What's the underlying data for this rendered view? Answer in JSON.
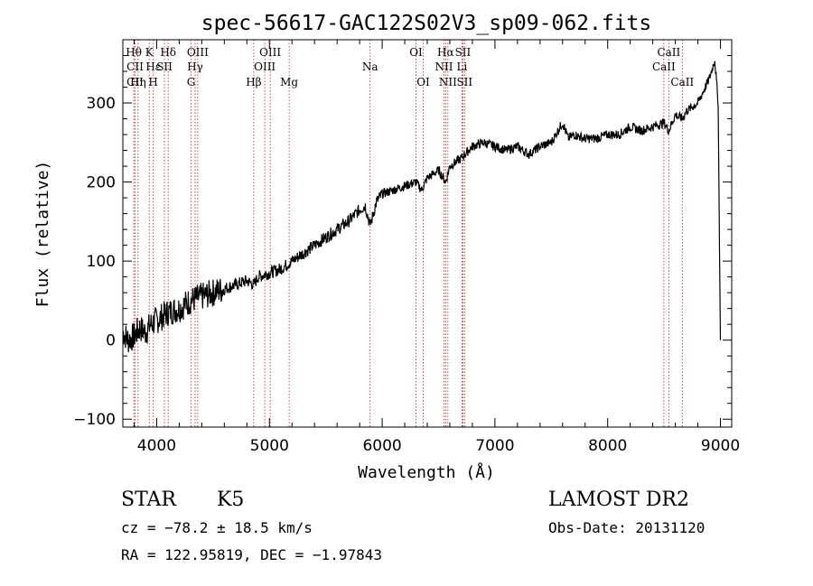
{
  "chart_data": {
    "type": "line",
    "title": "spec-56617-GAC122S02V3_sp09-062.fits",
    "xlabel": "Wavelength (Å)",
    "ylabel": "Flux (relative)",
    "xlim": [
      3700,
      9100
    ],
    "ylim": [
      -110,
      380
    ],
    "xticks": [
      4000,
      5000,
      6000,
      7000,
      8000,
      9000
    ],
    "yticks": [
      -100,
      0,
      100,
      200,
      300
    ],
    "xtick_labels": [
      "4000",
      "5000",
      "6000",
      "7000",
      "8000",
      "9000"
    ],
    "ytick_labels": [
      "−100",
      "0",
      "100",
      "200",
      "300"
    ],
    "grid": false,
    "series": [
      {
        "x": [
          3700,
          3750,
          3800,
          3850,
          3900,
          3950,
          4000,
          4050,
          4100,
          4200,
          4300,
          4400,
          4500,
          4600,
          4700,
          4800,
          4861,
          4900,
          5000,
          5100,
          5200,
          5300,
          5400,
          5500,
          5600,
          5700,
          5800,
          5850,
          5893,
          5950,
          6000,
          6100,
          6200,
          6300,
          6350,
          6400,
          6500,
          6563,
          6600,
          6700,
          6800,
          6900,
          7000,
          7100,
          7200,
          7300,
          7400,
          7500,
          7600,
          7650,
          7700,
          7800,
          7900,
          8000,
          8100,
          8200,
          8300,
          8400,
          8500,
          8542,
          8600,
          8662,
          8700,
          8800,
          8900,
          8950,
          8980,
          9000
        ],
        "y": [
          10,
          0,
          5,
          15,
          10,
          20,
          25,
          30,
          35,
          40,
          50,
          55,
          60,
          65,
          70,
          75,
          70,
          80,
          85,
          90,
          100,
          110,
          120,
          130,
          140,
          150,
          165,
          170,
          145,
          175,
          185,
          190,
          195,
          200,
          190,
          205,
          215,
          200,
          220,
          230,
          245,
          250,
          245,
          240,
          245,
          235,
          245,
          250,
          275,
          255,
          260,
          255,
          255,
          260,
          260,
          270,
          265,
          270,
          275,
          265,
          285,
          280,
          290,
          300,
          330,
          355,
          300,
          0
        ]
      }
    ],
    "line_marks": [
      {
        "label": "Hθ",
        "x": 3797,
        "row": 1
      },
      {
        "label": "CII",
        "x": 3808,
        "row": 2
      },
      {
        "label": "CII",
        "x": 3808,
        "row": 3
      },
      {
        "label": "K",
        "x": 3934,
        "row": 1
      },
      {
        "label": "Hε",
        "x": 3970,
        "row": 2
      },
      {
        "label": "Hη",
        "x": 3835,
        "row": 3
      },
      {
        "label": "SII",
        "x": 4069,
        "row": 2
      },
      {
        "label": "H",
        "x": 3969,
        "row": 3
      },
      {
        "label": "Hδ",
        "x": 4102,
        "row": 1
      },
      {
        "label": "OIII",
        "x": 4364,
        "row": 1
      },
      {
        "label": "Hγ",
        "x": 4341,
        "row": 2
      },
      {
        "label": "G",
        "x": 4305,
        "row": 3
      },
      {
        "label": "Hβ",
        "x": 4861,
        "row": 3
      },
      {
        "label": "OIII",
        "x": 5007,
        "row": 1
      },
      {
        "label": "OIII",
        "x": 4959,
        "row": 2
      },
      {
        "label": "Mg",
        "x": 5175,
        "row": 3
      },
      {
        "label": "Na",
        "x": 5893,
        "row": 2
      },
      {
        "label": "OI",
        "x": 6300,
        "row": 1
      },
      {
        "label": "OI",
        "x": 6364,
        "row": 3
      },
      {
        "label": "Hα",
        "x": 6563,
        "row": 1
      },
      {
        "label": "NII",
        "x": 6548,
        "row": 2
      },
      {
        "label": "NII",
        "x": 6583,
        "row": 3
      },
      {
        "label": "SII",
        "x": 6716,
        "row": 1
      },
      {
        "label": "Li",
        "x": 6708,
        "row": 2
      },
      {
        "label": "SII",
        "x": 6731,
        "row": 3
      },
      {
        "label": "CaII",
        "x": 8542,
        "row": 1
      },
      {
        "label": "CaII",
        "x": 8498,
        "row": 2
      },
      {
        "label": "CaII",
        "x": 8662,
        "row": 3
      }
    ]
  },
  "info": {
    "class_label": "STAR",
    "subclass_label": "K5",
    "survey": "LAMOST DR2",
    "cz_text": "cz = −78.2 ± 18.5 km/s",
    "obs_date_text": "Obs-Date: 20131120",
    "coords_text": "RA = 122.95819, DEC =  −1.97843"
  },
  "colors": {
    "line": "#000000",
    "markers": "#b22222",
    "background": "#ffffff"
  }
}
